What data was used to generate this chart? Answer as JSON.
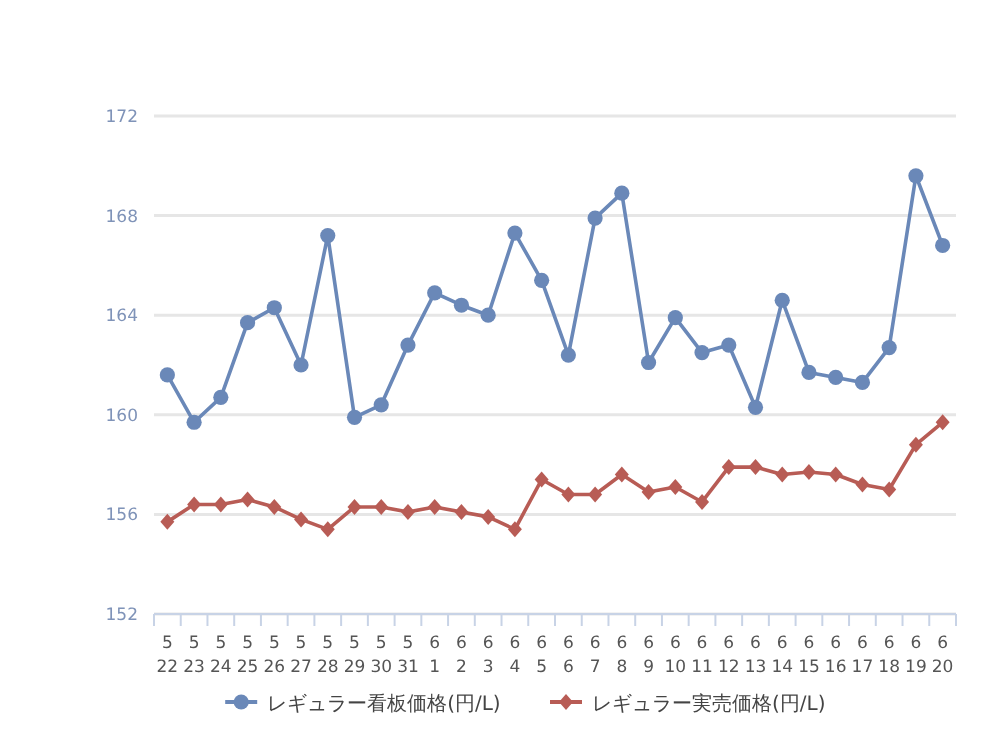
{
  "chart_data": {
    "type": "line",
    "categories": [
      "5\n22",
      "5\n23",
      "5\n24",
      "5\n25",
      "5\n26",
      "5\n27",
      "5\n28",
      "5\n29",
      "5\n30",
      "5\n31",
      "6\n1",
      "6\n2",
      "6\n3",
      "6\n4",
      "6\n5",
      "6\n6",
      "6\n7",
      "6\n8",
      "6\n9",
      "6\n10",
      "6\n11",
      "6\n12",
      "6\n13",
      "6\n14",
      "6\n15",
      "6\n16",
      "6\n17",
      "6\n18",
      "6\n19",
      "6\n20"
    ],
    "series": [
      {
        "name": "レギュラー看板価格(円/L)",
        "color": "#6a88b8",
        "marker": "circle",
        "values": [
          161.6,
          159.7,
          160.7,
          163.7,
          164.3,
          162.0,
          167.2,
          159.9,
          160.4,
          162.8,
          164.9,
          164.4,
          164.0,
          167.3,
          165.4,
          162.4,
          167.9,
          168.9,
          162.1,
          163.9,
          162.5,
          162.8,
          160.3,
          164.6,
          161.7,
          161.5,
          161.3,
          162.7,
          169.6,
          166.8
        ]
      },
      {
        "name": "レギュラー実売価格(円/L)",
        "color": "#b85c55",
        "marker": "diamond",
        "values": [
          155.7,
          156.4,
          156.4,
          156.6,
          156.3,
          155.8,
          155.4,
          156.3,
          156.3,
          156.1,
          156.3,
          156.1,
          155.9,
          155.4,
          157.4,
          156.8,
          156.8,
          157.6,
          156.9,
          157.1,
          156.5,
          157.9,
          157.9,
          157.6,
          157.7,
          157.6,
          157.2,
          157.0,
          158.8,
          159.7
        ]
      }
    ],
    "ylim": [
      152,
      172
    ],
    "yticks": [
      152,
      156,
      160,
      164,
      168,
      172
    ],
    "grid": "y",
    "legend": "bottom",
    "line_style": "solid"
  }
}
